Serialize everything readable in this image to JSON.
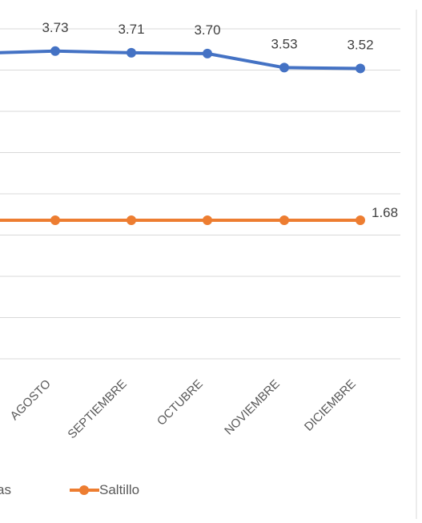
{
  "chart_data": {
    "type": "line",
    "categories": [
      "AGOSTO",
      "SEPTIEMBRE",
      "OCTUBRE",
      "NOVIEMBRE",
      "DICIEMBRE"
    ],
    "series": [
      {
        "name": "",
        "color": "#4472C4",
        "values": [
          3.73,
          3.71,
          3.7,
          3.53,
          3.52
        ],
        "labels": [
          "3.73",
          "3.71",
          "3.70",
          "3.53",
          "3.52"
        ],
        "label_all": true
      },
      {
        "name": "Saltillo",
        "color": "#ED7D31",
        "values": [
          1.68,
          1.68,
          1.68,
          1.68,
          1.68
        ],
        "labels": [
          "",
          "",
          "",
          "",
          "1.68"
        ],
        "label_all": false
      }
    ],
    "legend": {
      "position": "bottom",
      "items": [
        {
          "text": "as",
          "color": ""
        },
        {
          "text": "Saltillo",
          "color": "#ED7D31"
        }
      ]
    },
    "grid": true,
    "gridline_color": "#D9D9D9",
    "ylim": [
      0.0,
      4.0
    ]
  }
}
